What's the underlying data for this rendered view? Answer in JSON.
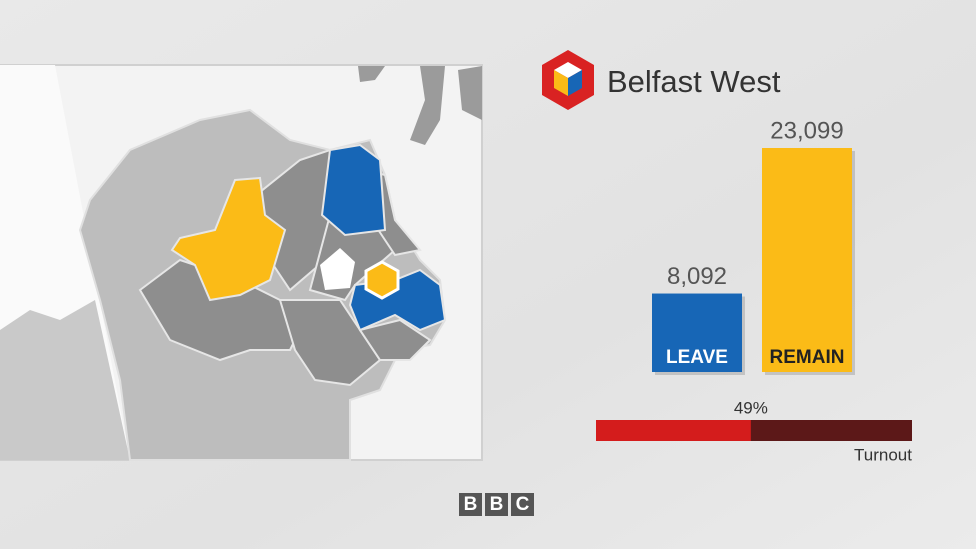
{
  "chart_data": {
    "type": "bar",
    "title": "Belfast West",
    "categories": [
      "LEAVE",
      "REMAIN"
    ],
    "values": [
      8092,
      23099
    ],
    "value_labels": [
      "8,092",
      "23,099"
    ],
    "colors": [
      "#1766b6",
      "#fbbb17"
    ]
  },
  "turnout": {
    "value": 49,
    "value_label": "49%",
    "label": "Turnout",
    "color": "#d41c1c",
    "rest_color": "#5c1818"
  },
  "logo": [
    "B",
    "B",
    "C"
  ]
}
